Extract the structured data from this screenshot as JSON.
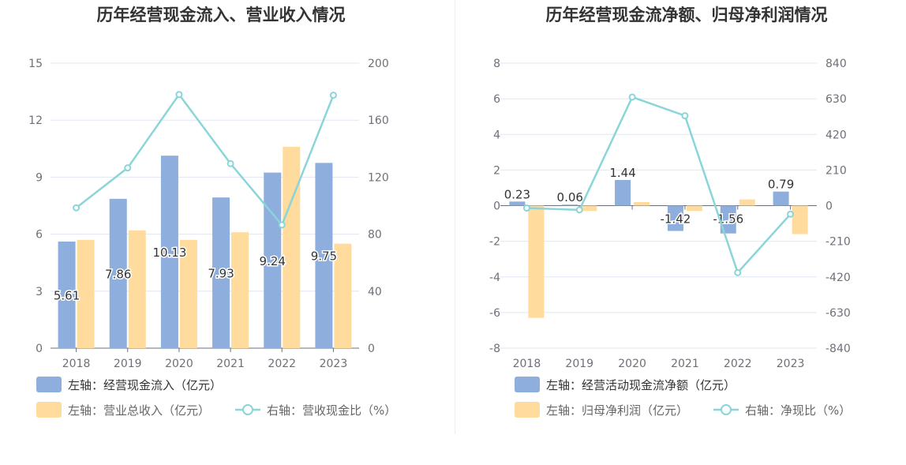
{
  "chart_data": [
    {
      "type": "bar",
      "title": "历年经营现金流入、营业收入情况",
      "categories": [
        "2018",
        "2019",
        "2020",
        "2021",
        "2022",
        "2023"
      ],
      "y_left": {
        "min": 0,
        "max": 15,
        "ticks": [
          "0",
          "3",
          "6",
          "9",
          "12",
          "15"
        ]
      },
      "y_right": {
        "min": 0,
        "max": 200,
        "ticks": [
          "0",
          "40",
          "80",
          "120",
          "160",
          "200"
        ]
      },
      "series": [
        {
          "name": "左轴：经营现金流入（亿元）",
          "kind": "bar",
          "axis": "left",
          "color": "#8eaedd",
          "values": [
            5.61,
            7.86,
            10.13,
            7.93,
            9.24,
            9.75
          ],
          "labels": [
            "5.61",
            "7.86",
            "10.13",
            "7.93",
            "9.24",
            "9.75"
          ]
        },
        {
          "name": "左轴：营业总收入（亿元）",
          "kind": "bar",
          "axis": "left",
          "color": "#ffdb9e",
          "values": [
            5.7,
            6.2,
            5.7,
            6.1,
            10.6,
            5.5
          ]
        },
        {
          "name": "右轴：营收现金比（%）",
          "kind": "line",
          "axis": "right",
          "color": "#8ad5d8",
          "values": [
            98.5,
            126.5,
            178.0,
            129.5,
            86.5,
            177.5
          ]
        }
      ]
    },
    {
      "type": "bar",
      "title": "历年经营现金流净额、归母净利润情况",
      "categories": [
        "2018",
        "2019",
        "2020",
        "2021",
        "2022",
        "2023"
      ],
      "y_left": {
        "min": -8,
        "max": 8,
        "ticks": [
          "-8",
          "-6",
          "-4",
          "-2",
          "0",
          "2",
          "4",
          "6",
          "8"
        ]
      },
      "y_right": {
        "min": -840,
        "max": 840,
        "ticks": [
          "-840",
          "-630",
          "-420",
          "-210",
          "0",
          "210",
          "420",
          "630",
          "840"
        ]
      },
      "series": [
        {
          "name": "左轴：经营活动现金流净额（亿元）",
          "kind": "bar",
          "axis": "left",
          "color": "#8eaedd",
          "values": [
            0.23,
            0.06,
            1.44,
            -1.42,
            -1.56,
            0.79
          ],
          "labels": [
            "0.23",
            "0.06",
            "1.44",
            "-1.42",
            "-1.56",
            "0.79"
          ]
        },
        {
          "name": "左轴：归母净利润（亿元）",
          "kind": "bar",
          "axis": "left",
          "color": "#ffdb9e",
          "values": [
            -6.3,
            -0.3,
            0.2,
            -0.3,
            0.35,
            -1.6
          ]
        },
        {
          "name": "右轴：净现比（%）",
          "kind": "line",
          "axis": "right",
          "color": "#8ad5d8",
          "values": [
            -14,
            -25,
            640,
            530,
            -395,
            -50
          ]
        }
      ]
    }
  ]
}
